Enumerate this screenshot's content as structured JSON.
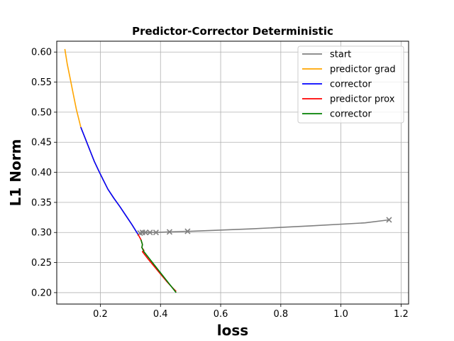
{
  "chart_data": {
    "type": "line",
    "title": "Predictor-Corrector Deterministic",
    "xlabel": "loss",
    "ylabel": "L1 Norm",
    "xlim": [
      0.055,
      1.225
    ],
    "ylim": [
      0.181,
      0.618
    ],
    "x_ticks": [
      0.2,
      0.4,
      0.6,
      0.8,
      1.0,
      1.2
    ],
    "x_tick_labels": [
      "0.2",
      "0.4",
      "0.6",
      "0.8",
      "1.0",
      "1.2"
    ],
    "y_ticks": [
      0.2,
      0.25,
      0.3,
      0.35,
      0.4,
      0.45,
      0.5,
      0.55,
      0.6
    ],
    "y_tick_labels": [
      "0.20",
      "0.25",
      "0.30",
      "0.35",
      "0.40",
      "0.45",
      "0.50",
      "0.55",
      "0.60"
    ],
    "grid": true,
    "legend_position": "top-right",
    "series": [
      {
        "name": "start",
        "color": "#808080",
        "marker": "x",
        "x": [
          1.16,
          1.08,
          0.9,
          0.7,
          0.5,
          0.49,
          0.43,
          0.385,
          0.365,
          0.35,
          0.34,
          0.332
        ],
        "y": [
          0.321,
          0.316,
          0.311,
          0.306,
          0.302,
          0.302,
          0.301,
          0.3,
          0.3,
          0.3,
          0.3,
          0.299
        ],
        "marker_points": [
          [
            1.16,
            0.321
          ],
          [
            0.49,
            0.302
          ],
          [
            0.43,
            0.301
          ],
          [
            0.385,
            0.3
          ],
          [
            0.365,
            0.3
          ],
          [
            0.35,
            0.3
          ],
          [
            0.34,
            0.3
          ],
          [
            0.332,
            0.299
          ]
        ]
      },
      {
        "name": "predictor grad",
        "color": "#ffa500",
        "x": [
          0.325,
          0.305,
          0.285,
          0.265,
          0.245,
          0.225,
          0.21,
          0.195,
          0.18,
          0.165,
          0.15,
          0.135,
          0.12,
          0.11,
          0.1,
          0.09,
          0.082
        ],
        "y": [
          0.297,
          0.313,
          0.328,
          0.343,
          0.357,
          0.372,
          0.387,
          0.402,
          0.418,
          0.437,
          0.456,
          0.475,
          0.505,
          0.53,
          0.555,
          0.58,
          0.605
        ]
      },
      {
        "name": "corrector",
        "color": "#0000ff",
        "x": [
          0.325,
          0.305,
          0.285,
          0.265,
          0.245,
          0.225,
          0.21,
          0.195,
          0.18,
          0.165,
          0.15,
          0.135
        ],
        "y": [
          0.297,
          0.313,
          0.328,
          0.343,
          0.357,
          0.372,
          0.387,
          0.402,
          0.418,
          0.437,
          0.456,
          0.475
        ]
      },
      {
        "name": "predictor prox",
        "color": "#ff0000",
        "x": [
          0.325,
          0.335,
          0.34,
          0.338,
          0.345,
          0.34,
          0.36,
          0.38,
          0.4,
          0.42,
          0.44,
          0.452
        ],
        "y": [
          0.297,
          0.288,
          0.28,
          0.275,
          0.27,
          0.268,
          0.255,
          0.243,
          0.231,
          0.219,
          0.208,
          0.202
        ]
      },
      {
        "name": "corrector",
        "color": "#008000",
        "x": [
          0.335,
          0.34,
          0.338,
          0.345,
          0.452
        ],
        "y": [
          0.288,
          0.28,
          0.275,
          0.268,
          0.2
        ]
      }
    ]
  }
}
